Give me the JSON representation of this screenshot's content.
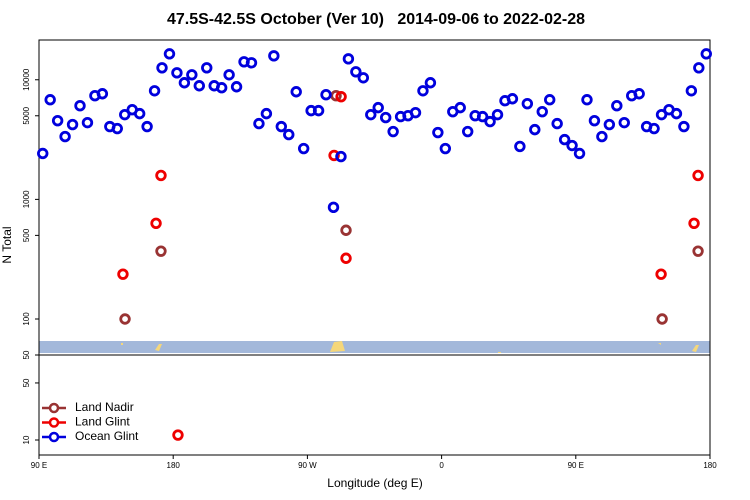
{
  "chart_data": [
    {
      "type": "scatter",
      "title": "47.5S-42.5S October (Ver 10)   2014-09-06 to 2022-02-28",
      "y_label": "N Total",
      "log_y": true,
      "xlim": [
        90,
        540
      ],
      "ylim": [
        50,
        21500
      ],
      "yticks": [
        50,
        100,
        500,
        1000,
        5000,
        10000
      ],
      "series": [
        {
          "name": "Land Nadir",
          "color": "#993333",
          "x": [
            147.7,
            171.8,
            289.2,
            295.9,
            507.9,
            532.0
          ],
          "values": [
            100,
            369,
            7360,
            552,
            100,
            369
          ]
        },
        {
          "name": "Land Glint",
          "color": "#ee0000",
          "x": [
            146.3,
            168.5,
            171.8,
            287.9,
            292.6,
            295.9,
            507.2,
            529.3,
            532.0
          ],
          "values": [
            237,
            631,
            1585,
            2330,
            7220,
            322,
            237,
            631,
            1585
          ]
        },
        {
          "name": "Ocean Glint",
          "color": "#0000dd",
          "x": [
            92.5,
            97.5,
            102.5,
            107.5,
            112.5,
            117.5,
            122.5,
            127.5,
            132.5,
            137.5,
            142.5,
            147.5,
            152.5,
            157.5,
            162.5,
            167.5,
            172.5,
            177.5,
            182.5,
            187.5,
            192.5,
            197.5,
            202.5,
            207.5,
            212.5,
            217.5,
            222.5,
            227.5,
            232.5,
            237.5,
            242.5,
            247.5,
            252.5,
            257.5,
            262.5,
            267.5,
            272.5,
            277.5,
            282.5,
            287.5,
            292.5,
            297.5,
            302.5,
            307.5,
            312.5,
            317.5,
            322.5,
            327.5,
            332.5,
            337.5,
            342.5,
            347.5,
            352.5,
            357.5,
            362.5,
            367.5,
            372.5,
            377.5,
            382.5,
            387.5,
            392.5,
            397.5,
            402.5,
            407.5,
            412.5,
            417.5,
            422.5,
            427.5,
            432.5,
            437.5,
            442.5,
            447.5,
            452.5,
            457.5,
            462.5,
            467.5,
            472.5,
            477.5,
            482.5,
            487.5,
            492.5,
            497.5,
            502.5,
            507.5,
            512.5,
            517.5,
            522.5,
            527.5,
            532.5,
            537.5
          ],
          "values": [
            2420,
            6810,
            4550,
            3350,
            4220,
            6070,
            4380,
            7360,
            7640,
            4060,
            3910,
            5110,
            5620,
            5210,
            4060,
            8090,
            12590,
            16470,
            11430,
            9440,
            11010,
            8910,
            12590,
            8910,
            8580,
            11010,
            8740,
            14130,
            13860,
            4300,
            5210,
            15850,
            4060,
            3480,
            7940,
            2660,
            5520,
            5520,
            7500,
            858,
            2280,
            14960,
            11660,
            10390,
            5110,
            5850,
            4830,
            3690,
            4920,
            5010,
            5310,
            8090,
            9440,
            3620,
            2660,
            5410,
            5850,
            3690,
            5010,
            4920,
            4470,
            5110,
            6680,
            6940,
            2770,
            6310,
            3830,
            5410,
            6810,
            4300,
            3160,
            2820,
            2420,
            6810,
            4550,
            3350,
            4220,
            6070,
            4380,
            7360,
            7640,
            4060,
            3910,
            5110,
            5620,
            5210,
            4060,
            8090,
            12590,
            16470
          ]
        }
      ]
    },
    {
      "type": "scatter",
      "x_label": "Longitude (deg E)",
      "log_y": true,
      "xlim": [
        90,
        540
      ],
      "xticks": [
        {
          "value": 90,
          "label": "90 E"
        },
        180,
        {
          "value": 270,
          "label": "90 W"
        },
        {
          "value": 360,
          "label": "0"
        },
        {
          "value": 450,
          "label": "90 E"
        },
        {
          "value": 540,
          "label": "180"
        }
      ],
      "ylim": [
        6.55,
        110
      ],
      "yticks": [
        10,
        50
      ],
      "legend": "lower left",
      "series": [
        {
          "name": "Land Nadir",
          "color": "#993333",
          "x": [],
          "values": []
        },
        {
          "name": "Land Glint",
          "color": "#ee0000",
          "x": [
            183.2
          ],
          "values": [
            11.5
          ]
        },
        {
          "name": "Ocean Glint",
          "color": "#0000dd",
          "x": [],
          "values": []
        }
      ]
    }
  ]
}
